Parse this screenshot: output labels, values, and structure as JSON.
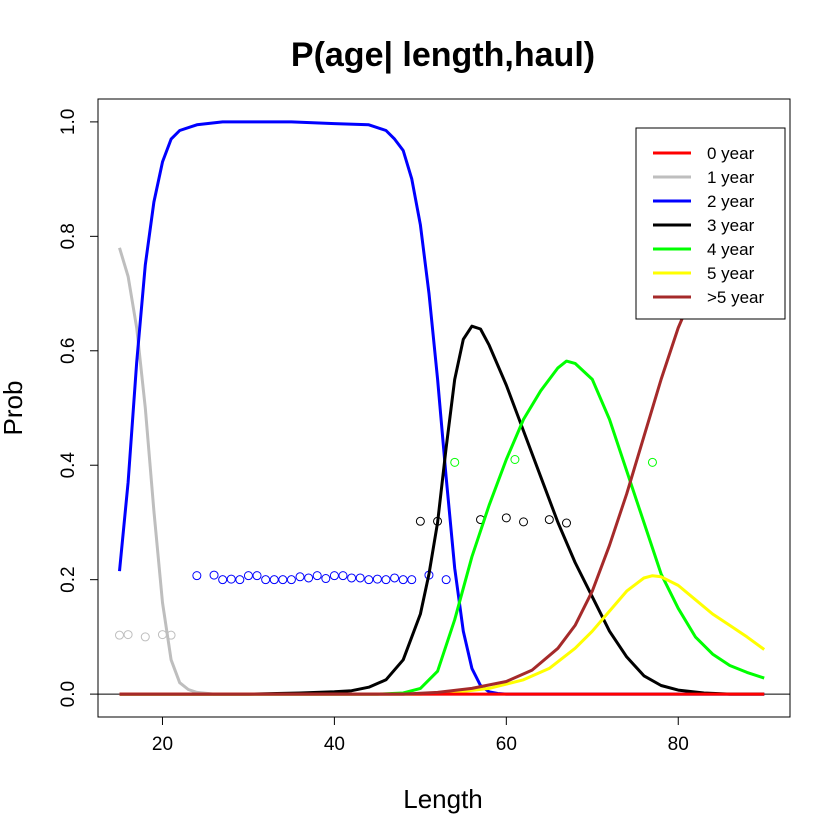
{
  "chart_data": {
    "type": "line",
    "title": "P(age| length,haul)",
    "xlabel": "Length",
    "ylabel": "Prob",
    "xlim": [
      12.5,
      93
    ],
    "ylim": [
      -0.04,
      1.04
    ],
    "xticks": [
      "20",
      "40",
      "60",
      "80"
    ],
    "yticks": [
      "0.0",
      "0.2",
      "0.4",
      "0.6",
      "0.8",
      "1.0"
    ],
    "grid": false,
    "reference_line_y": 0,
    "legend_position": "top-right",
    "series": [
      {
        "name": "0 year",
        "color": "#ff0000",
        "curve": [
          [
            15,
            0
          ],
          [
            90,
            0
          ]
        ],
        "points": []
      },
      {
        "name": "1 year",
        "color": "#bebebe",
        "curve": [
          [
            15,
            0.78
          ],
          [
            16,
            0.73
          ],
          [
            17,
            0.64
          ],
          [
            18,
            0.5
          ],
          [
            19,
            0.32
          ],
          [
            20,
            0.16
          ],
          [
            21,
            0.06
          ],
          [
            22,
            0.02
          ],
          [
            23,
            0.008
          ],
          [
            24,
            0.003
          ],
          [
            26,
            0
          ],
          [
            90,
            0
          ]
        ],
        "points": [
          [
            15,
            0.103
          ],
          [
            16,
            0.104
          ],
          [
            18,
            0.1
          ],
          [
            20,
            0.104
          ],
          [
            21,
            0.103
          ]
        ]
      },
      {
        "name": "2 year",
        "color": "#0000ff",
        "curve": [
          [
            15,
            0.215
          ],
          [
            16,
            0.37
          ],
          [
            17,
            0.58
          ],
          [
            18,
            0.75
          ],
          [
            19,
            0.86
          ],
          [
            20,
            0.93
          ],
          [
            21,
            0.97
          ],
          [
            22,
            0.985
          ],
          [
            24,
            0.995
          ],
          [
            27,
            1.0
          ],
          [
            35,
            1.0
          ],
          [
            40,
            0.997
          ],
          [
            44,
            0.995
          ],
          [
            46,
            0.985
          ],
          [
            47,
            0.97
          ],
          [
            48,
            0.95
          ],
          [
            49,
            0.9
          ],
          [
            50,
            0.82
          ],
          [
            51,
            0.7
          ],
          [
            52,
            0.55
          ],
          [
            53,
            0.38
          ],
          [
            54,
            0.22
          ],
          [
            55,
            0.11
          ],
          [
            56,
            0.045
          ],
          [
            57,
            0.015
          ],
          [
            58,
            0.004
          ],
          [
            59,
            0.001
          ],
          [
            60,
            0
          ],
          [
            90,
            0
          ]
        ],
        "points": [
          [
            24,
            0.207
          ],
          [
            26,
            0.208
          ],
          [
            27,
            0.2
          ],
          [
            28,
            0.201
          ],
          [
            29,
            0.2
          ],
          [
            30,
            0.207
          ],
          [
            31,
            0.207
          ],
          [
            32,
            0.2
          ],
          [
            33,
            0.2
          ],
          [
            34,
            0.2
          ],
          [
            35,
            0.2
          ],
          [
            36,
            0.205
          ],
          [
            37,
            0.203
          ],
          [
            38,
            0.207
          ],
          [
            39,
            0.202
          ],
          [
            40,
            0.207
          ],
          [
            41,
            0.207
          ],
          [
            42,
            0.203
          ],
          [
            43,
            0.203
          ],
          [
            44,
            0.2
          ],
          [
            45,
            0.201
          ],
          [
            46,
            0.2
          ],
          [
            47,
            0.203
          ],
          [
            48,
            0.2
          ],
          [
            49,
            0.2
          ],
          [
            51,
            0.208
          ],
          [
            53,
            0.2
          ]
        ]
      },
      {
        "name": "3 year",
        "color": "#000000",
        "curve": [
          [
            15,
            0
          ],
          [
            30,
            0
          ],
          [
            36,
            0.002
          ],
          [
            40,
            0.004
          ],
          [
            42,
            0.006
          ],
          [
            44,
            0.012
          ],
          [
            46,
            0.025
          ],
          [
            48,
            0.06
          ],
          [
            50,
            0.14
          ],
          [
            51,
            0.21
          ],
          [
            52,
            0.3
          ],
          [
            53,
            0.43
          ],
          [
            54,
            0.55
          ],
          [
            55,
            0.62
          ],
          [
            56,
            0.643
          ],
          [
            57,
            0.638
          ],
          [
            58,
            0.61
          ],
          [
            60,
            0.54
          ],
          [
            62,
            0.46
          ],
          [
            64,
            0.38
          ],
          [
            66,
            0.3
          ],
          [
            68,
            0.23
          ],
          [
            70,
            0.17
          ],
          [
            72,
            0.11
          ],
          [
            74,
            0.065
          ],
          [
            76,
            0.032
          ],
          [
            78,
            0.015
          ],
          [
            80,
            0.007
          ],
          [
            83,
            0.002
          ],
          [
            86,
            0
          ],
          [
            90,
            0
          ]
        ],
        "points": [
          [
            50,
            0.302
          ],
          [
            52,
            0.302
          ],
          [
            57,
            0.305
          ],
          [
            60,
            0.308
          ],
          [
            62,
            0.301
          ],
          [
            65,
            0.305
          ],
          [
            67,
            0.299
          ]
        ]
      },
      {
        "name": "4 year",
        "color": "#00ff00",
        "curve": [
          [
            15,
            0
          ],
          [
            45,
            0
          ],
          [
            48,
            0.002
          ],
          [
            50,
            0.01
          ],
          [
            52,
            0.04
          ],
          [
            54,
            0.13
          ],
          [
            56,
            0.24
          ],
          [
            58,
            0.33
          ],
          [
            60,
            0.41
          ],
          [
            62,
            0.48
          ],
          [
            64,
            0.53
          ],
          [
            66,
            0.57
          ],
          [
            67,
            0.582
          ],
          [
            68,
            0.578
          ],
          [
            70,
            0.55
          ],
          [
            72,
            0.48
          ],
          [
            74,
            0.39
          ],
          [
            76,
            0.3
          ],
          [
            78,
            0.21
          ],
          [
            80,
            0.15
          ],
          [
            82,
            0.1
          ],
          [
            84,
            0.07
          ],
          [
            86,
            0.05
          ],
          [
            88,
            0.038
          ],
          [
            90,
            0.028
          ]
        ],
        "points": [
          [
            54,
            0.405
          ],
          [
            61,
            0.41
          ],
          [
            77,
            0.405
          ]
        ]
      },
      {
        "name": "5 year",
        "color": "#ffff00",
        "curve": [
          [
            15,
            0
          ],
          [
            50,
            0
          ],
          [
            54,
            0.003
          ],
          [
            58,
            0.01
          ],
          [
            62,
            0.025
          ],
          [
            65,
            0.045
          ],
          [
            68,
            0.08
          ],
          [
            70,
            0.11
          ],
          [
            72,
            0.145
          ],
          [
            74,
            0.18
          ],
          [
            76,
            0.203
          ],
          [
            77,
            0.207
          ],
          [
            78,
            0.205
          ],
          [
            80,
            0.19
          ],
          [
            82,
            0.165
          ],
          [
            84,
            0.14
          ],
          [
            86,
            0.12
          ],
          [
            88,
            0.1
          ],
          [
            90,
            0.078
          ]
        ],
        "points": []
      },
      {
        "name": ">5 year",
        "color": "#a52a2a",
        "curve": [
          [
            15,
            0
          ],
          [
            48,
            0
          ],
          [
            52,
            0.003
          ],
          [
            56,
            0.01
          ],
          [
            60,
            0.022
          ],
          [
            63,
            0.042
          ],
          [
            66,
            0.08
          ],
          [
            68,
            0.12
          ],
          [
            70,
            0.18
          ],
          [
            72,
            0.26
          ],
          [
            74,
            0.35
          ],
          [
            76,
            0.45
          ],
          [
            78,
            0.55
          ],
          [
            80,
            0.64
          ],
          [
            82,
            0.71
          ],
          [
            84,
            0.77
          ],
          [
            86,
            0.82
          ],
          [
            88,
            0.86
          ],
          [
            90,
            0.888
          ]
        ],
        "points": []
      }
    ]
  }
}
